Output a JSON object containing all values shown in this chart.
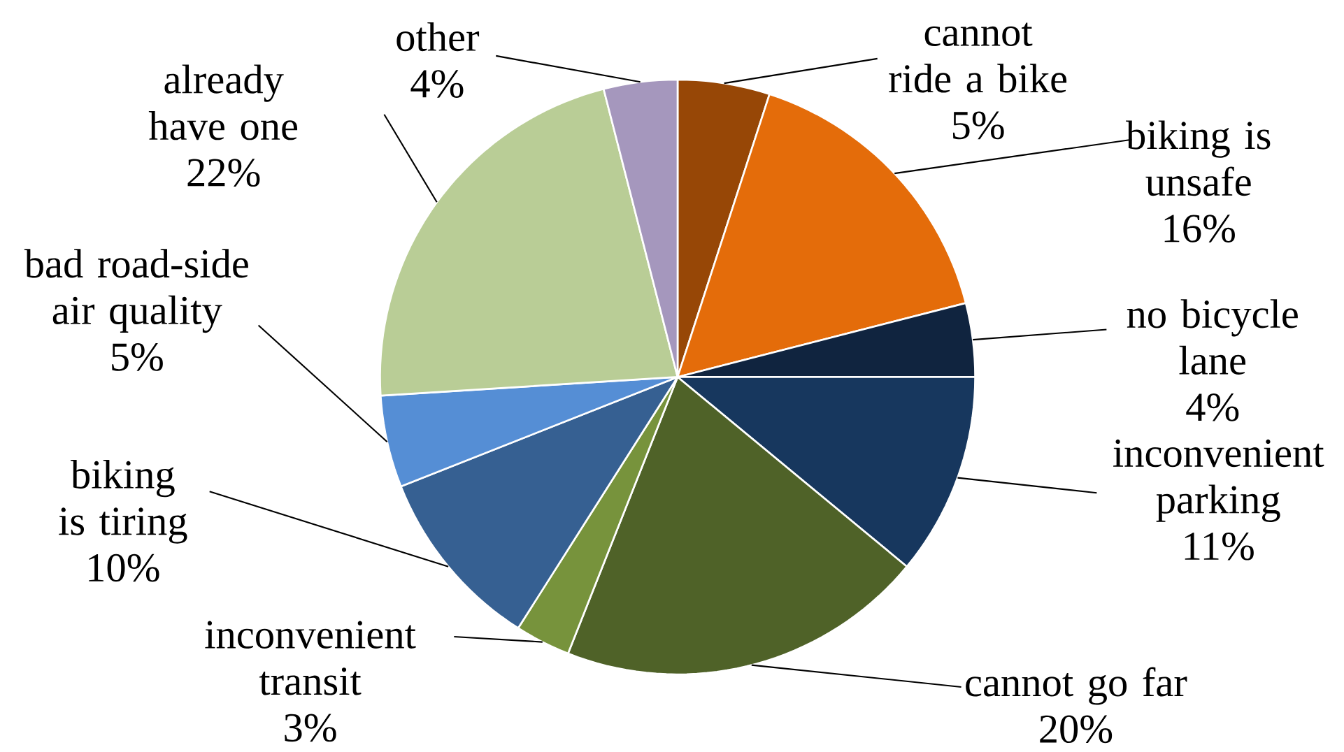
{
  "chart_data": {
    "type": "pie",
    "categories": [
      "cannot ride a bike",
      "biking is unsafe",
      "no bicycle lane",
      "inconvenient parking",
      "cannot go far",
      "inconvenient transit",
      "biking is tiring",
      "bad road-side air quality",
      "already have one",
      "other"
    ],
    "values": [
      5,
      16,
      4,
      11,
      20,
      3,
      10,
      5,
      22,
      4
    ],
    "colors": [
      "#974706",
      "#e46c0a",
      "#10243f",
      "#17375e",
      "#4f6228",
      "#77933c",
      "#366092",
      "#558ed5",
      "#b9cd96",
      "#a597bd"
    ],
    "value_labels": [
      "5%",
      "16%",
      "4%",
      "11%",
      "20%",
      "3%",
      "10%",
      "5%",
      "22%",
      "4%"
    ]
  }
}
